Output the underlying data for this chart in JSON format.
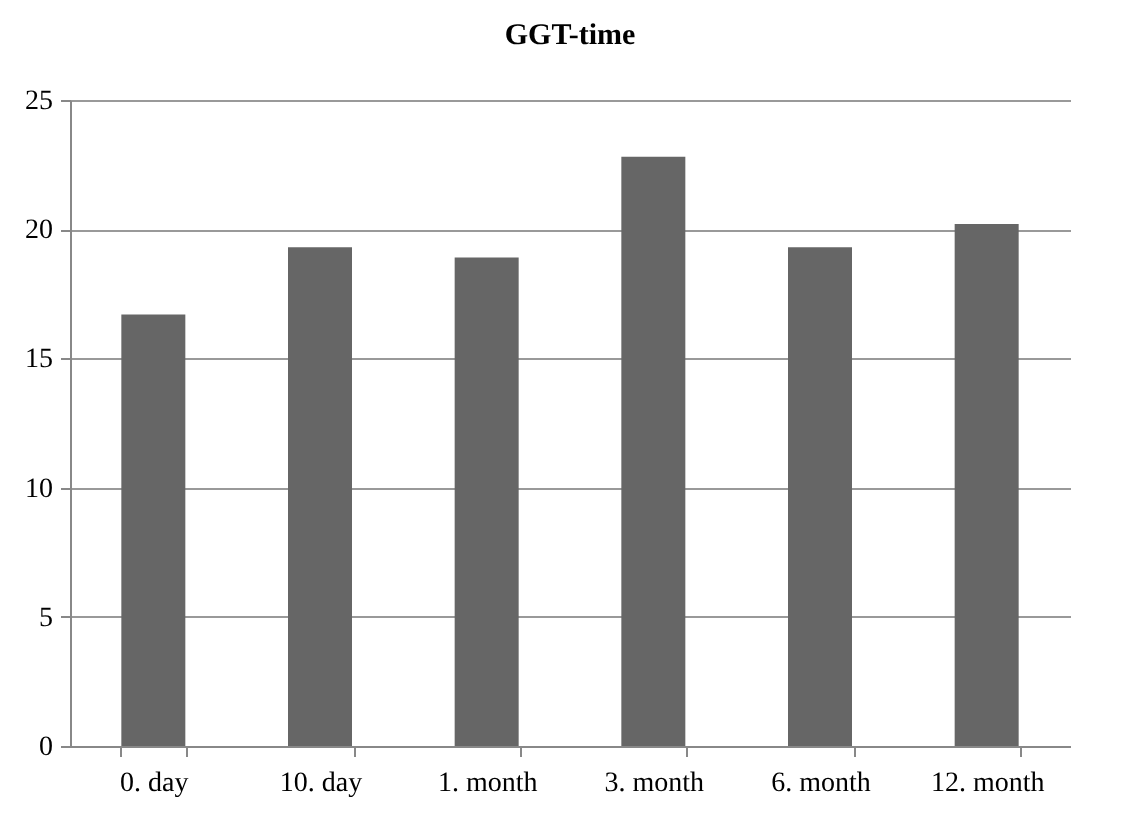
{
  "chart_data": {
    "type": "bar",
    "title": "GGT-time",
    "categories": [
      "0. day",
      "10. day",
      "1. month",
      "3. month",
      "6. month",
      "12. month"
    ],
    "values": [
      16.7,
      19.3,
      18.9,
      22.8,
      19.3,
      20.2
    ],
    "color": "#666666",
    "ylim": [
      0,
      25
    ],
    "yticks": [
      0,
      5,
      10,
      15,
      20,
      25
    ],
    "grid": "y"
  }
}
